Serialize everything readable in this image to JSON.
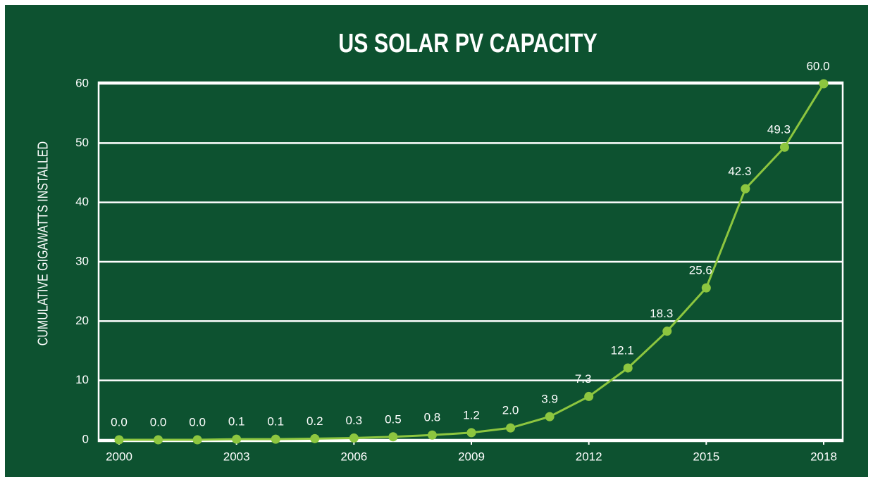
{
  "chart_data": {
    "type": "line",
    "title": "US SOLAR PV CAPACITY",
    "y_label": "CUMULATIVE GIGAWATTS INSTALLED",
    "x": [
      2000,
      2001,
      2002,
      2003,
      2004,
      2005,
      2006,
      2007,
      2008,
      2009,
      2010,
      2011,
      2012,
      2013,
      2014,
      2015,
      2016,
      2017,
      2018
    ],
    "series": [
      {
        "name": "US Solar PV Capacity",
        "color": "#8dc63f",
        "values": [
          0,
          0,
          0,
          0.1,
          0.1,
          0.2,
          0.3,
          0.5,
          0.8,
          1.2,
          2,
          3.9,
          7.3,
          12.1,
          18.3,
          25.6,
          42.3,
          49.3,
          60
        ],
        "value_labels": [
          "0.0",
          "0.0",
          "0.0",
          "0.1",
          "0.1",
          "0.2",
          "0.3",
          "0.5",
          "0.8",
          "1.2",
          "2.0",
          "3.9",
          "7.3",
          "12.1",
          "18.3",
          "25.6",
          "42.3",
          "49.3",
          "60.0"
        ]
      }
    ],
    "xlim": [
      2000,
      2018
    ],
    "xticks": [
      2000,
      2003,
      2006,
      2009,
      2012,
      2015,
      2018
    ],
    "ylim": [
      0,
      60
    ],
    "yticks": [
      0,
      10,
      20,
      30,
      40,
      50,
      60
    ],
    "grid": true
  }
}
